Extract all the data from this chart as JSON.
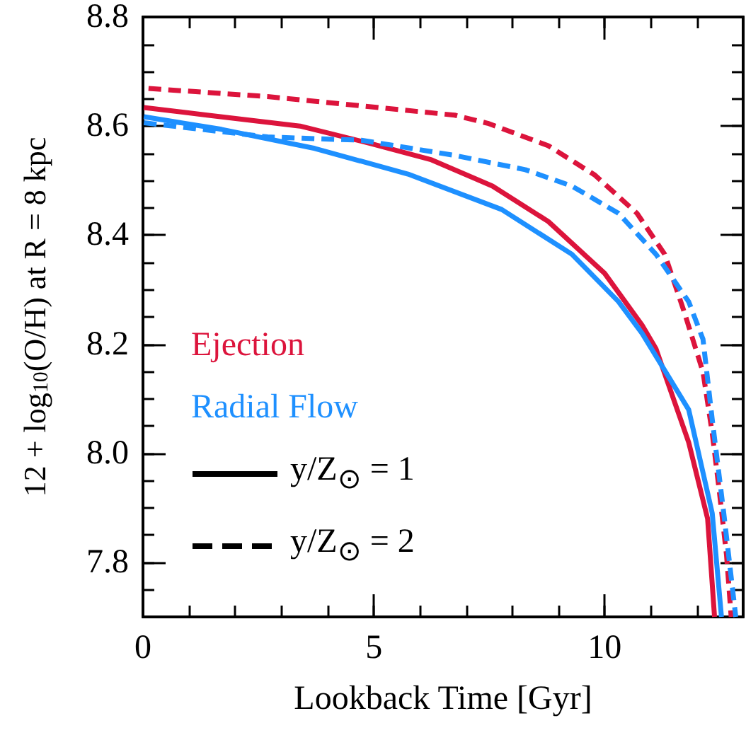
{
  "chart_data": {
    "type": "line",
    "xlabel": "Lookback Time [Gyr]",
    "ylabel": "12 + log$_{10}$(O/H) at R = 8 kpc",
    "xlim": [
      0,
      13
    ],
    "ylim": [
      7.7,
      8.8
    ],
    "xticks": [
      0,
      5,
      10
    ],
    "yticks": [
      {
        "value": 7.8,
        "label": "7.8"
      },
      {
        "value": 8.0,
        "label": "8.0"
      },
      {
        "value": 8.2,
        "label": "8.2"
      },
      {
        "value": 8.4,
        "label": "8.4"
      },
      {
        "value": 8.6,
        "label": "8.6"
      },
      {
        "value": 8.8,
        "label": "8.8"
      }
    ],
    "grid": false,
    "marker": "none",
    "annotations": [
      "Ejection",
      "Radial Flow",
      "y/Z$_{⊙}$ = 1",
      "y/Z$_{⊙}$ = 2"
    ],
    "series": [
      {
        "color": "#dc143c",
        "line_style": "solid",
        "x": [
          0.02,
          1.39,
          3.4,
          4.93,
          6.25,
          7.57,
          8.78,
          10.0,
          10.81,
          11.11,
          11.82,
          12.23,
          12.38
        ],
        "values": [
          8.634,
          8.62,
          8.6,
          8.568,
          8.538,
          8.49,
          8.425,
          8.33,
          8.235,
          8.192,
          8.02,
          7.88,
          7.7
        ]
      },
      {
        "color": "#dc143c",
        "line_style": "dashed",
        "x": [
          0.12,
          2.7,
          6.75,
          7.47,
          8.78,
          9.79,
          10.7,
          11.3,
          11.72,
          12.13,
          12.33,
          12.48,
          12.64,
          12.74
        ],
        "values": [
          8.669,
          8.654,
          8.62,
          8.605,
          8.564,
          8.51,
          8.44,
          8.365,
          8.26,
          8.149,
          8.037,
          7.933,
          7.813,
          7.7
        ]
      },
      {
        "color": "#1e90ff",
        "line_style": "solid",
        "x": [
          0.02,
          1.7,
          3.72,
          5.74,
          7.77,
          9.29,
          10.3,
          10.81,
          11.82,
          12.33,
          12.53
        ],
        "values": [
          8.617,
          8.594,
          8.559,
          8.512,
          8.447,
          8.365,
          8.278,
          8.22,
          8.08,
          7.89,
          7.7
        ]
      },
      {
        "color": "#1e90ff",
        "line_style": "dashed",
        "x": [
          0.02,
          2.7,
          4.73,
          6.76,
          8.28,
          9.29,
          10.3,
          11.11,
          11.82,
          12.13,
          12.33,
          12.58,
          12.84
        ],
        "values": [
          8.606,
          8.58,
          8.574,
          8.546,
          8.52,
          8.49,
          8.44,
          8.365,
          8.278,
          8.209,
          8.062,
          7.89,
          7.7
        ]
      }
    ]
  }
}
